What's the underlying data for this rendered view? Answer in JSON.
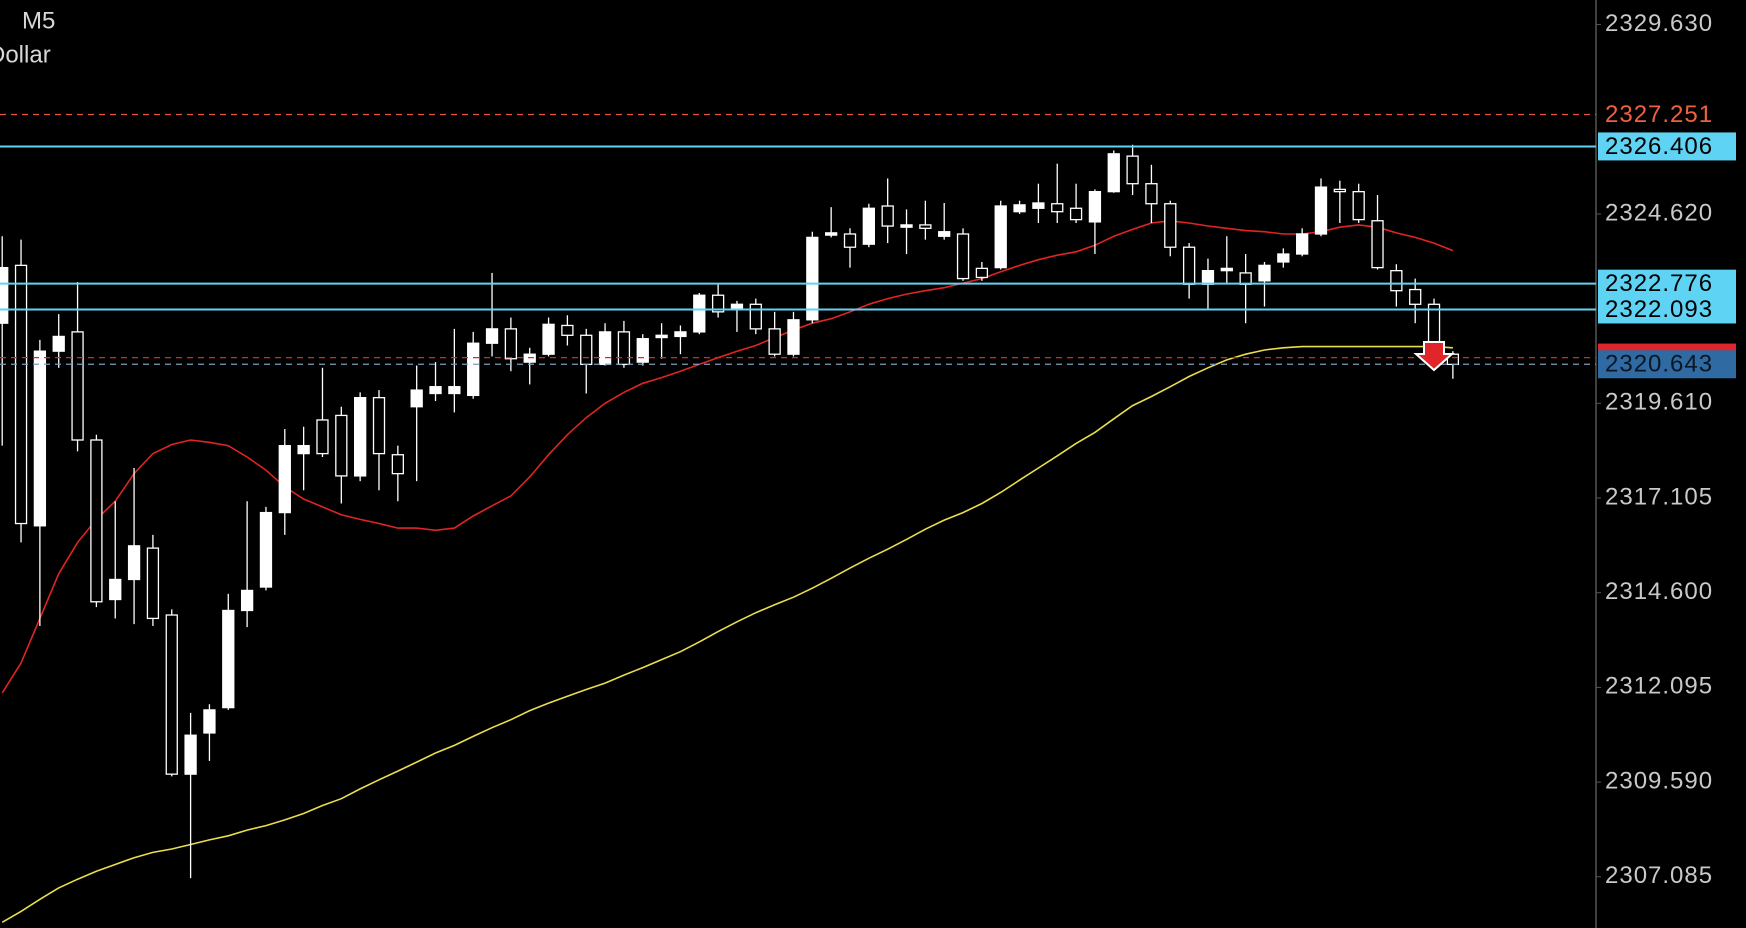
{
  "chart_data": {
    "type": "candlestick",
    "title": "M5",
    "subtitle": "Dollar",
    "up_color": "#ffffff",
    "down_color": "#000000",
    "wick_color": "#ffffff",
    "ohlc": {
      "open": [
        2321.73,
        2323.26,
        2316.37,
        2320.99,
        2321.5,
        2318.64,
        2314.42,
        2314.95,
        2315.78,
        2314.01,
        2309.8,
        2310.89,
        2311.56,
        2314.13,
        2314.75,
        2316.72,
        2318.28,
        2319.17,
        2319.29,
        2317.69,
        2319.76,
        2318.25,
        2319.52,
        2319.87,
        2319.87,
        2319.82,
        2321.2,
        2321.58,
        2320.7,
        2320.91,
        2321.67,
        2321.41,
        2320.64,
        2321.5,
        2320.7,
        2321.35,
        2321.38,
        2321.5,
        2322.47,
        2322.11,
        2322.23,
        2321.58,
        2320.91,
        2321.82,
        2324.06,
        2324.09,
        2323.82,
        2324.83,
        2324.27,
        2324.33,
        2324.03,
        2324.09,
        2323.18,
        2323.2,
        2324.68,
        2324.77,
        2324.89,
        2324.77,
        2324.41,
        2325.21,
        2326.15,
        2325.42,
        2324.89,
        2323.74,
        2322.76,
        2323.12,
        2323.06,
        2322.85,
        2323.35,
        2323.56,
        2324.09,
        2325.27,
        2325.21,
        2324.44,
        2323.12,
        2322.62,
        2322.23,
        2320.91
      ],
      "high": [
        2324.03,
        2323.94,
        2321.29,
        2321.97,
        2322.82,
        2318.78,
        2317.02,
        2317.9,
        2316.13,
        2314.16,
        2311.42,
        2311.65,
        2314.57,
        2317.02,
        2316.87,
        2318.93,
        2318.99,
        2320.55,
        2319.52,
        2319.9,
        2319.96,
        2318.49,
        2320.61,
        2320.7,
        2321.58,
        2321.5,
        2323.06,
        2321.88,
        2321.08,
        2321.88,
        2321.94,
        2321.58,
        2321.73,
        2321.79,
        2321.44,
        2321.73,
        2321.67,
        2322.53,
        2322.76,
        2322.32,
        2322.38,
        2322.03,
        2322.03,
        2324.15,
        2324.8,
        2324.24,
        2324.89,
        2325.56,
        2324.74,
        2324.97,
        2324.91,
        2324.24,
        2323.35,
        2324.97,
        2324.97,
        2325.42,
        2325.95,
        2325.42,
        2325.27,
        2326.3,
        2326.45,
        2325.92,
        2324.97,
        2323.85,
        2323.44,
        2324.03,
        2323.56,
        2323.35,
        2323.71,
        2324.24,
        2325.56,
        2325.5,
        2325.42,
        2325.12,
        2323.29,
        2322.91,
        2322.38,
        2320.99
      ],
      "low": [
        2318.49,
        2315.93,
        2313.72,
        2320.55,
        2318.34,
        2314.22,
        2313.92,
        2313.77,
        2313.72,
        2309.74,
        2307.05,
        2310.15,
        2311.5,
        2313.69,
        2314.66,
        2316.13,
        2317.31,
        2318.19,
        2316.96,
        2317.55,
        2317.31,
        2317.02,
        2317.55,
        2319.67,
        2319.37,
        2319.73,
        2320.85,
        2320.46,
        2320.11,
        2320.85,
        2321.14,
        2319.87,
        2320.61,
        2320.55,
        2320.61,
        2320.79,
        2320.91,
        2321.44,
        2321.88,
        2321.5,
        2321.44,
        2320.85,
        2320.85,
        2321.73,
        2324.0,
        2323.2,
        2323.74,
        2323.85,
        2323.56,
        2323.94,
        2323.94,
        2322.85,
        2322.85,
        2323.15,
        2324.62,
        2324.38,
        2324.38,
        2324.38,
        2323.56,
        2325.18,
        2325.12,
        2324.38,
        2323.5,
        2322.38,
        2322.11,
        2322.76,
        2321.73,
        2322.17,
        2323.2,
        2323.5,
        2324.03,
        2324.38,
        2324.38,
        2323.15,
        2322.17,
        2321.73,
        2320.79,
        2320.26
      ],
      "close": [
        2323.2,
        2316.43,
        2320.99,
        2321.38,
        2318.64,
        2314.36,
        2314.95,
        2315.84,
        2313.92,
        2309.8,
        2310.83,
        2311.5,
        2314.13,
        2314.66,
        2316.72,
        2318.49,
        2318.49,
        2318.28,
        2317.69,
        2319.76,
        2318.28,
        2317.75,
        2319.96,
        2320.05,
        2320.05,
        2321.2,
        2321.58,
        2320.79,
        2320.91,
        2321.7,
        2321.41,
        2320.64,
        2321.5,
        2320.64,
        2321.32,
        2321.41,
        2321.5,
        2322.47,
        2322.03,
        2322.23,
        2321.58,
        2320.91,
        2321.82,
        2324.0,
        2324.12,
        2323.74,
        2324.77,
        2324.3,
        2324.33,
        2324.24,
        2324.15,
        2322.91,
        2322.94,
        2324.83,
        2324.86,
        2324.91,
        2324.68,
        2324.47,
        2325.21,
        2326.21,
        2325.42,
        2324.89,
        2323.74,
        2322.76,
        2323.12,
        2323.18,
        2322.76,
        2323.26,
        2323.56,
        2324.09,
        2325.33,
        2325.21,
        2324.47,
        2323.2,
        2322.59,
        2322.23,
        2320.91,
        2320.64
      ]
    },
    "moving_averages": [
      {
        "color": "#e02424",
        "values": [
          2311.95,
          2312.74,
          2313.92,
          2315.1,
          2315.93,
          2316.54,
          2317.02,
          2317.75,
          2318.28,
          2318.52,
          2318.64,
          2318.58,
          2318.49,
          2318.19,
          2317.84,
          2317.4,
          2317.08,
          2316.87,
          2316.66,
          2316.54,
          2316.43,
          2316.31,
          2316.31,
          2316.25,
          2316.31,
          2316.63,
          2316.9,
          2317.16,
          2317.66,
          2318.25,
          2318.78,
          2319.23,
          2319.61,
          2319.9,
          2320.14,
          2320.29,
          2320.46,
          2320.64,
          2320.82,
          2320.99,
          2321.14,
          2321.35,
          2321.55,
          2321.73,
          2321.85,
          2322.03,
          2322.23,
          2322.38,
          2322.5,
          2322.59,
          2322.67,
          2322.79,
          2322.91,
          2323.09,
          2323.26,
          2323.41,
          2323.53,
          2323.62,
          2323.79,
          2324.03,
          2324.21,
          2324.38,
          2324.44,
          2324.38,
          2324.3,
          2324.24,
          2324.18,
          2324.15,
          2324.09,
          2324.09,
          2324.15,
          2324.27,
          2324.33,
          2324.27,
          2324.12,
          2324.0,
          2323.85,
          2323.65
        ]
      },
      {
        "color": "#e9de4c",
        "values": [
          2305.88,
          2306.17,
          2306.49,
          2306.79,
          2307.02,
          2307.23,
          2307.41,
          2307.59,
          2307.73,
          2307.82,
          2307.94,
          2308.06,
          2308.17,
          2308.32,
          2308.44,
          2308.59,
          2308.76,
          2308.97,
          2309.15,
          2309.41,
          2309.65,
          2309.88,
          2310.12,
          2310.36,
          2310.56,
          2310.8,
          2311.03,
          2311.24,
          2311.48,
          2311.68,
          2311.86,
          2312.04,
          2312.21,
          2312.42,
          2312.62,
          2312.83,
          2313.04,
          2313.3,
          2313.57,
          2313.83,
          2314.07,
          2314.28,
          2314.48,
          2314.72,
          2314.98,
          2315.25,
          2315.51,
          2315.75,
          2316.01,
          2316.28,
          2316.52,
          2316.72,
          2316.96,
          2317.25,
          2317.58,
          2317.9,
          2318.22,
          2318.55,
          2318.84,
          2319.2,
          2319.55,
          2319.79,
          2320.05,
          2320.32,
          2320.55,
          2320.76,
          2320.91,
          2321.02,
          2321.08,
          2321.11,
          2321.11,
          2321.11,
          2321.11,
          2321.11,
          2321.11,
          2321.11,
          2321.11,
          2321.08
        ]
      }
    ],
    "levels": [
      {
        "value": 2327.251,
        "color": "#e8553a",
        "dashed": true,
        "label_color": "#f0603f"
      },
      {
        "value": 2326.406,
        "color": "#5fd3f3",
        "dashed": false,
        "label_fill": "#5fd3f3",
        "label_color": "#000000"
      },
      {
        "value": 2322.776,
        "color": "#5fd3f3",
        "dashed": false,
        "label_fill": "#5fd3f3",
        "label_color": "#000000"
      },
      {
        "value": 2322.093,
        "color": "#5fd3f3",
        "dashed": false,
        "label_fill": "#5fd3f3",
        "label_color": "#000000"
      },
      {
        "value": 2320.82,
        "color": "#e0262b",
        "dashed": true,
        "label_fill": "#e0262b"
      },
      {
        "value": 2320.643,
        "color": "#7d9cc0",
        "dashed": true,
        "label_fill": "#2f6aa3",
        "label_color": "#0b1622"
      }
    ],
    "ylim": [
      2305.73,
      2330.28
    ],
    "yticks": [
      {
        "value": 2329.63,
        "label": "2329.630"
      },
      {
        "value": 2324.62,
        "label": "2324.620"
      },
      {
        "value": 2319.61,
        "label": "2319.610"
      },
      2317.105,
      {
        "value": 2314.6,
        "label": "2314.600"
      },
      2312.095,
      {
        "value": 2309.59,
        "label": "2309.590"
      },
      2307.085
    ]
  }
}
